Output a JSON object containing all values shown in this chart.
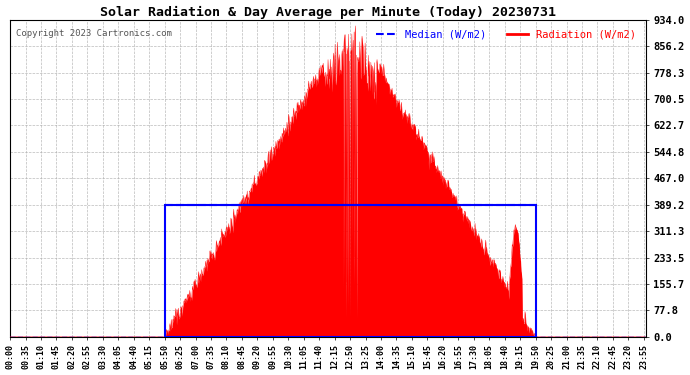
{
  "title": "Solar Radiation & Day Average per Minute (Today) 20230731",
  "copyright": "Copyright 2023 Cartronics.com",
  "legend_median": "Median (W/m2)",
  "legend_radiation": "Radiation (W/m2)",
  "yticks": [
    0.0,
    77.8,
    155.7,
    233.5,
    311.3,
    389.2,
    467.0,
    544.8,
    622.7,
    700.5,
    778.3,
    856.2,
    934.0
  ],
  "ymax": 934.0,
  "ymin": 0.0,
  "median_value": 389.2,
  "sunrise_min": 350,
  "sunset_min": 1190,
  "peak_min": 770,
  "peak_value": 934.0,
  "bg_color": "#ffffff",
  "fill_color": "#ff0000",
  "median_color": "#0000ff",
  "grid_color": "#aaaaaa",
  "title_color": "#000000",
  "copyright_color": "#555555",
  "n_points": 1440,
  "xtick_step": 35,
  "figwidth": 6.9,
  "figheight": 3.75,
  "dpi": 100
}
